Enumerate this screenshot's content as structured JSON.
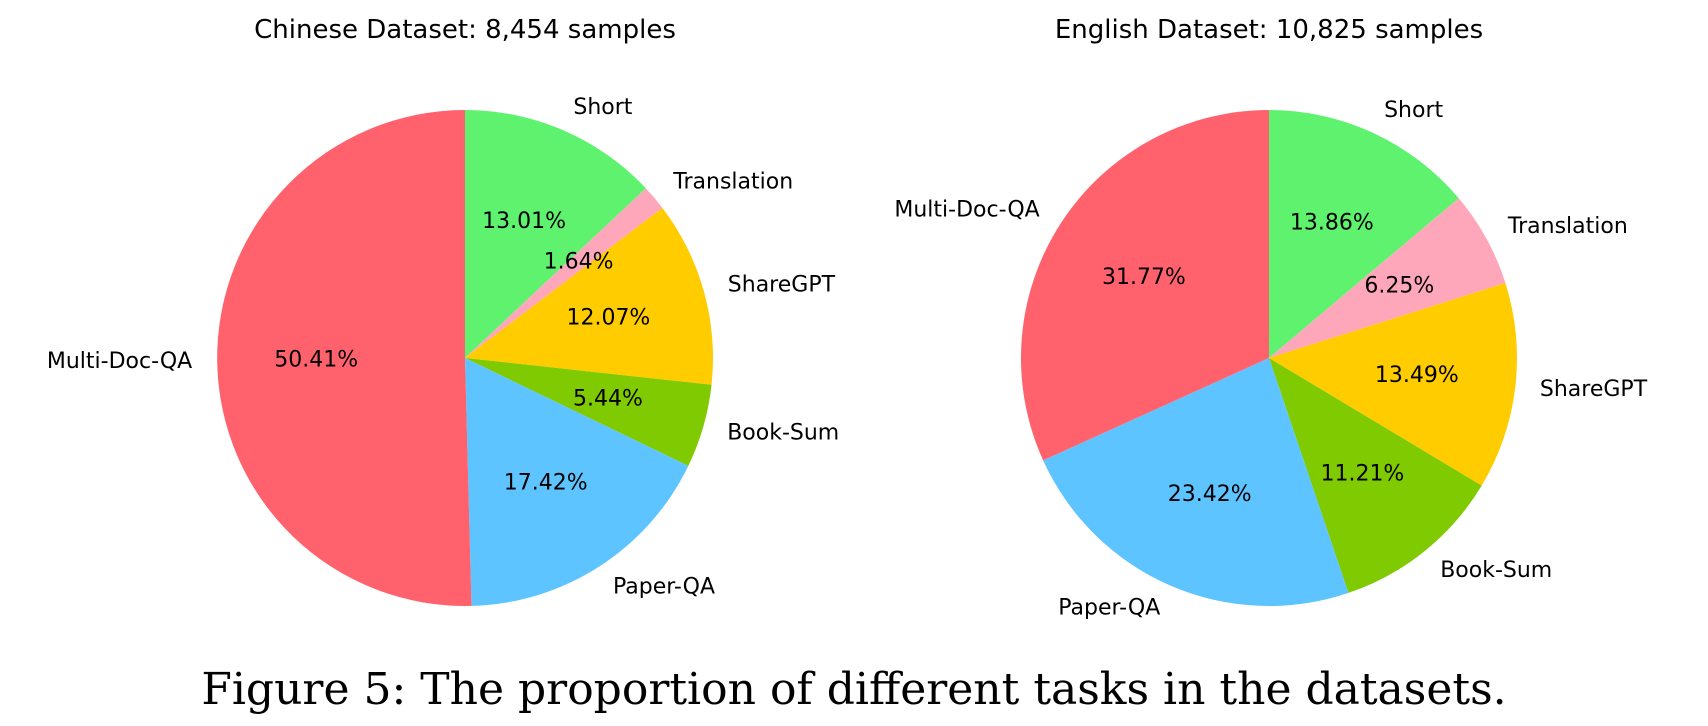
{
  "chart_data": [
    {
      "type": "pie",
      "title": "Chinese Dataset: 8,454 samples",
      "slices": [
        {
          "label": "Short",
          "value": 13.01,
          "pct_label": "13.01%",
          "color": "#5ef26f"
        },
        {
          "label": "Translation",
          "value": 1.64,
          "pct_label": "1.64%",
          "color": "#ffa7ba"
        },
        {
          "label": "ShareGPT",
          "value": 12.07,
          "pct_label": "12.07%",
          "color": "#ffcc00"
        },
        {
          "label": "Book-Sum",
          "value": 5.44,
          "pct_label": "5.44%",
          "color": "#7fca00"
        },
        {
          "label": "Paper-QA",
          "value": 17.42,
          "pct_label": "17.42%",
          "color": "#5ec4ff"
        },
        {
          "label": "Multi-Doc-QA",
          "value": 50.41,
          "pct_label": "50.41%",
          "color": "#ff626d"
        }
      ]
    },
    {
      "type": "pie",
      "title": "English Dataset: 10,825 samples",
      "slices": [
        {
          "label": "Short",
          "value": 13.86,
          "pct_label": "13.86%",
          "color": "#5ef26f"
        },
        {
          "label": "Translation",
          "value": 6.25,
          "pct_label": "6.25%",
          "color": "#ffa7ba"
        },
        {
          "label": "ShareGPT",
          "value": 13.49,
          "pct_label": "13.49%",
          "color": "#ffcc00"
        },
        {
          "label": "Book-Sum",
          "value": 11.21,
          "pct_label": "11.21%",
          "color": "#7fca00"
        },
        {
          "label": "Paper-QA",
          "value": 23.42,
          "pct_label": "23.42%",
          "color": "#5ec4ff"
        },
        {
          "label": "Multi-Doc-QA",
          "value": 31.77,
          "pct_label": "31.77%",
          "color": "#ff626d"
        }
      ]
    }
  ],
  "caption": "Figure 5: The proportion of different tasks in the datasets."
}
